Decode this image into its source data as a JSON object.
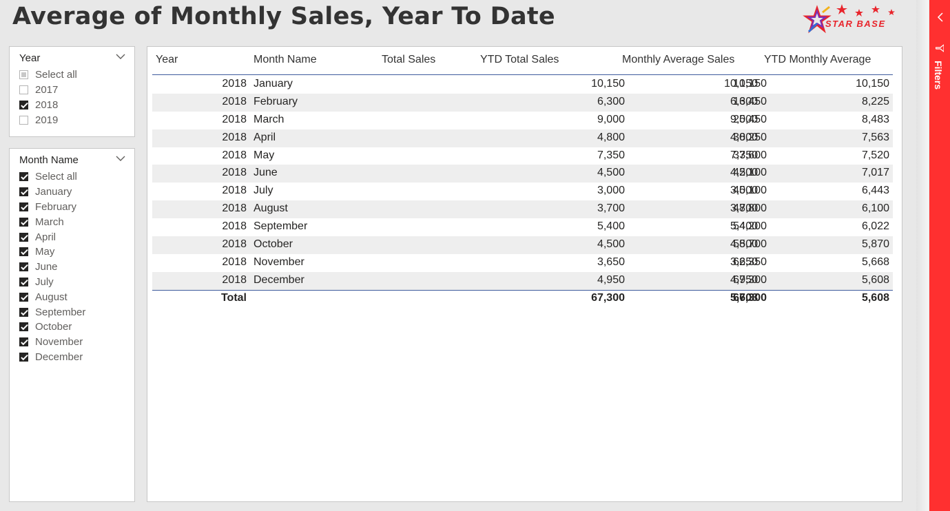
{
  "report": {
    "title": "Average of Monthly Sales, Year To Date",
    "logo_text": "STAR BASE"
  },
  "slicer_year": {
    "header": "Year",
    "items": [
      {
        "label": "Select all",
        "state": "partial"
      },
      {
        "label": "2017",
        "state": "unchecked"
      },
      {
        "label": "2018",
        "state": "checked"
      },
      {
        "label": "2019",
        "state": "unchecked"
      }
    ]
  },
  "slicer_month": {
    "header": "Month Name",
    "items": [
      {
        "label": "Select all",
        "state": "checked"
      },
      {
        "label": "January",
        "state": "checked"
      },
      {
        "label": "February",
        "state": "checked"
      },
      {
        "label": "March",
        "state": "checked"
      },
      {
        "label": "April",
        "state": "checked"
      },
      {
        "label": "May",
        "state": "checked"
      },
      {
        "label": "June",
        "state": "checked"
      },
      {
        "label": "July",
        "state": "checked"
      },
      {
        "label": "August",
        "state": "checked"
      },
      {
        "label": "September",
        "state": "checked"
      },
      {
        "label": "October",
        "state": "checked"
      },
      {
        "label": "November",
        "state": "checked"
      },
      {
        "label": "December",
        "state": "checked"
      }
    ]
  },
  "table": {
    "columns": [
      "Year",
      "Month Name",
      "Total Sales",
      "YTD Total Sales",
      "Monthly Average Sales",
      "YTD Monthly Average"
    ],
    "rows": [
      [
        "2018",
        "January",
        "10,150",
        "10,150",
        "10,150",
        "10,150"
      ],
      [
        "2018",
        "February",
        "6,300",
        "16,450",
        "6,300",
        "8,225"
      ],
      [
        "2018",
        "March",
        "9,000",
        "25,450",
        "9,000",
        "8,483"
      ],
      [
        "2018",
        "April",
        "4,800",
        "30,250",
        "4,800",
        "7,563"
      ],
      [
        "2018",
        "May",
        "7,350",
        "37,600",
        "7,350",
        "7,520"
      ],
      [
        "2018",
        "June",
        "4,500",
        "42,100",
        "4,500",
        "7,017"
      ],
      [
        "2018",
        "July",
        "3,000",
        "45,100",
        "3,000",
        "6,443"
      ],
      [
        "2018",
        "August",
        "3,700",
        "48,800",
        "3,700",
        "6,100"
      ],
      [
        "2018",
        "September",
        "5,400",
        "54,200",
        "5,400",
        "6,022"
      ],
      [
        "2018",
        "October",
        "4,500",
        "58,700",
        "4,500",
        "5,870"
      ],
      [
        "2018",
        "November",
        "3,650",
        "62,350",
        "3,650",
        "5,668"
      ],
      [
        "2018",
        "December",
        "4,950",
        "67,300",
        "4,950",
        "5,608"
      ]
    ],
    "total": {
      "label": "Total",
      "values": [
        "67,300",
        "67,300",
        "5,608",
        "5,608"
      ]
    }
  },
  "filters_pane": {
    "label": "Filters",
    "collapse_icon": "chevron-left-icon",
    "filter_icon": "filter-icon"
  },
  "colors": {
    "filters_bar": "#ff3030",
    "header_rule": "#3d5a9c",
    "row_band": "#eeeeee"
  }
}
